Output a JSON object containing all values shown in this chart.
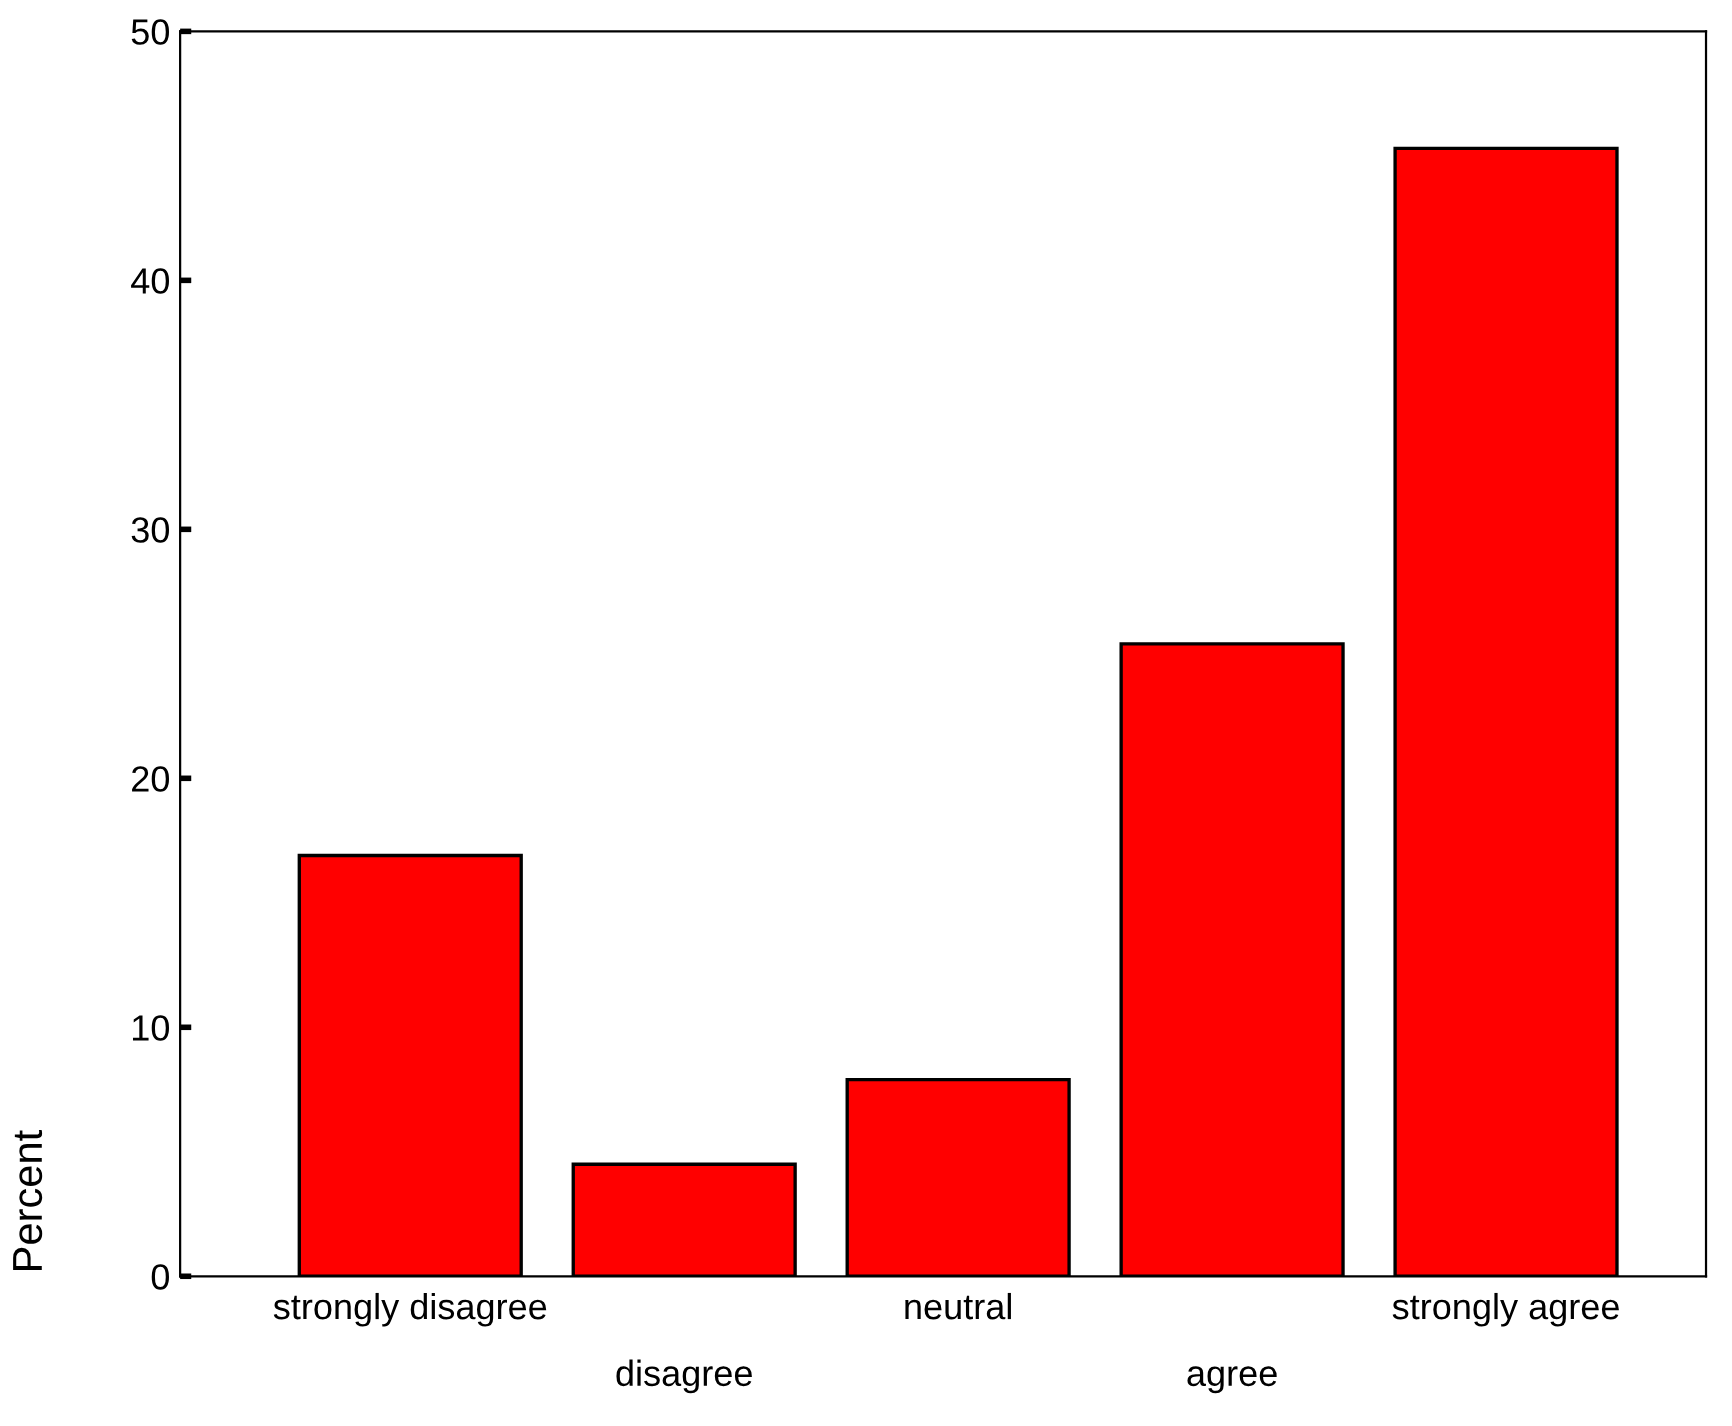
{
  "chart_data": {
    "type": "bar",
    "ylabel": "Percent",
    "categories": [
      "strongly disagree",
      "disagree",
      "neutral",
      "agree",
      "strongly agree"
    ],
    "values": [
      16.9,
      4.5,
      7.9,
      25.4,
      45.3
    ],
    "color": "#ff0000",
    "ylim": [
      0,
      50
    ],
    "yticks": [
      0,
      10,
      20,
      30,
      40,
      50
    ],
    "grid": false,
    "legend": false
  }
}
